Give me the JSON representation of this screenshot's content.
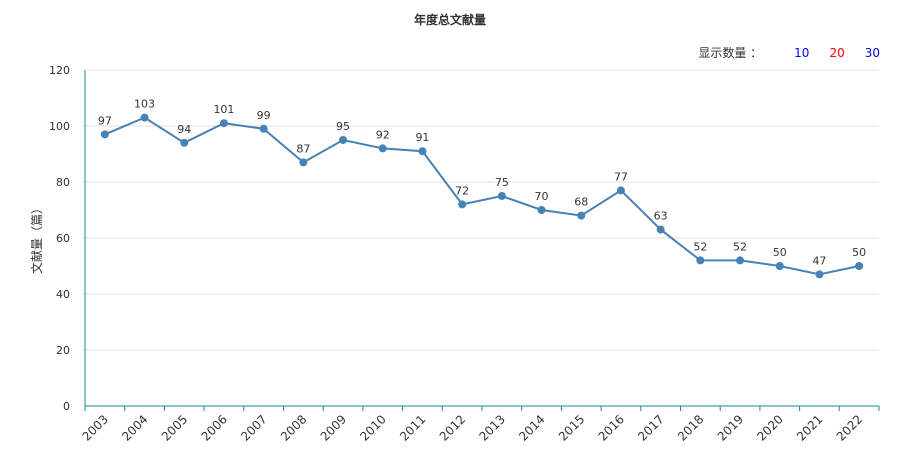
{
  "title": "年度总文献量",
  "display_count": {
    "label": "显示数量 ：",
    "options": [
      {
        "label": "10",
        "color": "#0000ff"
      },
      {
        "label": "20",
        "color": "#ff0000"
      },
      {
        "label": "30",
        "color": "#0000cc"
      }
    ]
  },
  "chart_data": {
    "type": "line",
    "title": "年度总文献量",
    "xlabel": "",
    "ylabel": "文献量（篇）",
    "categories": [
      "2003",
      "2004",
      "2005",
      "2006",
      "2007",
      "2008",
      "2009",
      "2010",
      "2011",
      "2012",
      "2013",
      "2014",
      "2015",
      "2016",
      "2017",
      "2018",
      "2019",
      "2020",
      "2021",
      "2022"
    ],
    "values": [
      97,
      103,
      94,
      101,
      99,
      87,
      95,
      92,
      91,
      72,
      75,
      70,
      68,
      77,
      63,
      52,
      52,
      50,
      47,
      50
    ],
    "ylim": [
      0,
      120
    ],
    "yticks": [
      0,
      20,
      40,
      60,
      80,
      100,
      120
    ],
    "grid": true,
    "line_color": "#4682b4",
    "axis_color": "#1a8a9a"
  }
}
